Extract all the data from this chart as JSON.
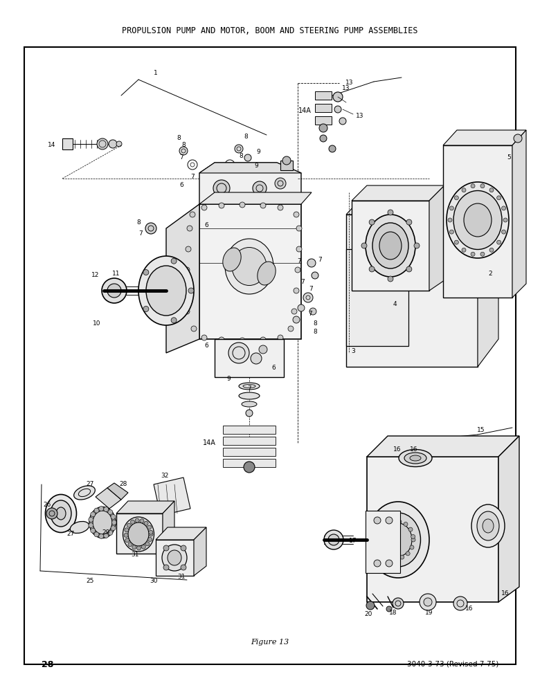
{
  "title": "PROPULSION PUMP AND MOTOR, BOOM AND STEERING PUMP ASSEMBLIES",
  "figure_label": "Figure 13",
  "page_number": "28",
  "doc_ref": "3040-3-73 (Revised 7-75)",
  "bg_color": "#ffffff",
  "border_color": "#000000",
  "text_color": "#000000",
  "title_fontsize": 8.5,
  "label_fontsize": 6.5,
  "fig_width": 7.8,
  "fig_height": 10.0
}
